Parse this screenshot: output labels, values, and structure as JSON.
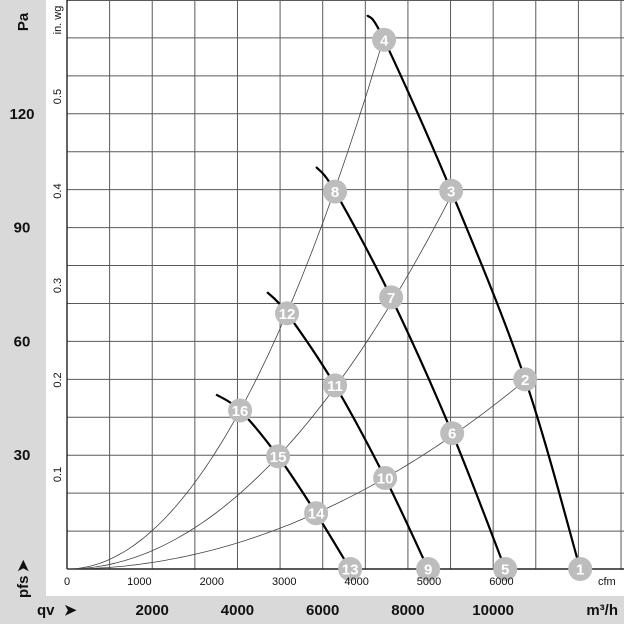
{
  "chart_data": {
    "type": "line",
    "title": "",
    "x_primary": {
      "label": "m³/h",
      "prefix_label": "qv",
      "ticks": [
        2000,
        4000,
        6000,
        8000,
        10000
      ],
      "range": [
        0,
        13070
      ]
    },
    "x_secondary": {
      "label": "cfm",
      "ticks": [
        0,
        1000,
        2000,
        3000,
        4000,
        5000,
        6000
      ]
    },
    "y_primary": {
      "label": "Pa",
      "axis_label": "pfs",
      "ticks": [
        30,
        60,
        90,
        120
      ],
      "range": [
        0,
        150
      ],
      "grid_step": 10
    },
    "y_secondary": {
      "label": "in. wg",
      "ticks": [
        0.1,
        0.2,
        0.3,
        0.4,
        0.5
      ]
    },
    "grid": true,
    "fan_curves": [
      {
        "start": [
          7042,
          146
        ],
        "points": [
          {
            "id": "4",
            "x": 7441,
            "y": 139.5
          },
          {
            "id": "3",
            "x": 9014,
            "y": 99.7
          },
          {
            "id": "2",
            "x": 10751,
            "y": 50
          },
          {
            "id": "1",
            "x": 12042,
            "y": 0
          }
        ]
      },
      {
        "start": [
          5845,
          106
        ],
        "points": [
          {
            "id": "8",
            "x": 6291,
            "y": 99.5
          },
          {
            "id": "7",
            "x": 7606,
            "y": 71.6
          },
          {
            "id": "6",
            "x": 9038,
            "y": 35.8
          },
          {
            "id": "5",
            "x": 10282,
            "y": 0
          }
        ]
      },
      {
        "start": [
          4695,
          73
        ],
        "points": [
          {
            "id": "12",
            "x": 5164,
            "y": 67.4
          },
          {
            "id": "11",
            "x": 6291,
            "y": 48.4
          },
          {
            "id": "10",
            "x": 7465,
            "y": 24
          },
          {
            "id": "9",
            "x": 8474,
            "y": 0
          }
        ]
      },
      {
        "start": [
          3498,
          46
        ],
        "points": [
          {
            "id": "16",
            "x": 4061,
            "y": 41.8
          },
          {
            "id": "15",
            "x": 4953,
            "y": 29.7
          },
          {
            "id": "14",
            "x": 5845,
            "y": 14.7
          },
          {
            "id": "13",
            "x": 6643,
            "y": 0
          }
        ]
      }
    ],
    "system_curves": [
      {
        "through": [
          "16",
          "12",
          "8",
          "4"
        ],
        "end_x": 7441
      },
      {
        "through": [
          "15",
          "11",
          "7",
          "3"
        ],
        "end_x": 9014
      },
      {
        "through": [
          "14",
          "10",
          "6",
          "2"
        ],
        "end_x": 10751
      }
    ],
    "colors": {
      "band": "#d9d9d9",
      "marker": "#bdbdbd",
      "fan_line": "#000000",
      "grid": "#5a5a5a"
    }
  }
}
